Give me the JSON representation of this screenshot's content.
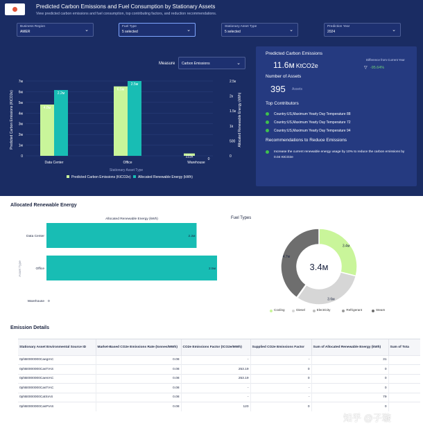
{
  "header": {
    "title": "Predicted Carbon Emissions and Fuel Consumption by Stationary Assets",
    "subtitle": "View predicted carbon emissions and fuel consumption, top contributing factors, and reduction recommendations."
  },
  "filters": [
    {
      "label": "Business Region",
      "value": "AMER"
    },
    {
      "label": "Fuel Type",
      "value": "5 selected"
    },
    {
      "label": "Stationary Asset Type",
      "value": "5 selected"
    },
    {
      "label": "Prediction Year",
      "value": "2024"
    }
  ],
  "measure": {
    "label": "Measure",
    "value": "Carbon Emissions"
  },
  "summary": {
    "title": "Predicted Carbon Emissions",
    "value": "11.6м",
    "unit": "KtCO2e",
    "diff_label": "Difference from Current Year",
    "diff_value": "-95.64%",
    "assets_label": "Number of Assets",
    "assets_value": "395",
    "assets_unit": "Assets",
    "top_label": "Top Contributors",
    "contributors": [
      "Country:US,Maximum Yearly Day Temperature 88",
      "Country:US,Maximum Yearly Day Temperature 72",
      "Country:US,Maximum Yearly Day Temperature 94"
    ],
    "rec_label": "Recommendations to Reduce Emissions",
    "recommendation": "Increase the current renewable energy usage by 10% to reduce the carbon emissions by 0.04 KtCO2e"
  },
  "chart_data": [
    {
      "type": "bar",
      "categories": [
        "Data Center",
        "Office",
        "Warehouse"
      ],
      "series": [
        {
          "name": "Predicted Carbon Emissions (KtCO2e)",
          "color": "#c9f59a",
          "values": [
            4.8,
            6.5,
            0.222
          ],
          "labels": [
            "4.8м",
            "6.5м",
            "222к"
          ]
        },
        {
          "name": "Allocated Renewable Energy (kWh)",
          "color": "#18bdb4",
          "values": [
            2200000,
            2500000,
            0
          ],
          "labels": [
            "2.2м",
            "2.5м",
            "0"
          ]
        }
      ],
      "xlabel": "Stationary Asset Type",
      "ylabel": "Predicted Carbon Emissions (KtCO2e)",
      "y2label": "Allocated Renewable Energy (kWh)",
      "yticks": [
        "0",
        "1м",
        "2м",
        "3м",
        "4м",
        "5м",
        "6м",
        "7м"
      ],
      "ylim": [
        0,
        7
      ],
      "y2ticks": [
        "0",
        "500",
        "1k",
        "1.5к",
        "2к",
        "2.5к"
      ],
      "y2lim": [
        0,
        2500000
      ],
      "legend": "bottom"
    },
    {
      "type": "bar",
      "orientation": "horizontal",
      "title": "Allocated Renewable Energy (kWh)",
      "categories": [
        "Data Center",
        "Office",
        "Warehouse"
      ],
      "values": [
        2200000,
        2500000,
        0
      ],
      "labels": [
        "2.2м",
        "2.5м",
        "0"
      ],
      "ylabel": "Asset Type",
      "color": "#18bdb4"
    },
    {
      "type": "pie",
      "title": "Fuel Types",
      "center_label": "3.4м",
      "slices": [
        {
          "name": "Cooling",
          "value": 3.4,
          "label": "3.4м",
          "color": "#c9f59a"
        },
        {
          "name": "Diesel",
          "value": 3.6,
          "label": "3.6м",
          "color": "#d6d6d6"
        },
        {
          "name": "Electricity",
          "value": 0.02,
          "label": "",
          "color": "#bdbdbd"
        },
        {
          "name": "Refrigerant",
          "value": 0.02,
          "label": "",
          "color": "#9a9a9a"
        },
        {
          "name": "Steam",
          "value": 4.7,
          "label": "4.7м",
          "color": "#6e6e6e"
        }
      ],
      "legend": "bottom"
    }
  ],
  "allocated": {
    "title": "Allocated Renewable Energy"
  },
  "table": {
    "title": "Emission Details",
    "columns": [
      "Stationary Asset Environmental Source ID",
      "Market-Based CO2e Emissions Rate (tonnes/MWh)",
      "CO2e Emissions Factor (tCO2e/MWh)",
      "Supplied CO2e Emissions Factor",
      "Sum of Allocated Renewable Energy (kWh)",
      "Sum of Tota"
    ],
    "rows": [
      [
        "0phB0000000CaegIAC",
        "0.08",
        "-",
        "-",
        "31",
        ""
      ],
      [
        "0phB0000000CasTIAS",
        "0.08",
        "253.19",
        "0",
        "0",
        ""
      ],
      [
        "0phB0000000CaenIAC",
        "0.08",
        "253.19",
        "0",
        "0",
        ""
      ],
      [
        "0phB0000000CasTIAC",
        "0.08",
        "-",
        "-",
        "0",
        ""
      ],
      [
        "0phB0000000CatSIAS",
        "0.08",
        "-",
        "-",
        "79",
        ""
      ],
      [
        "0phB0000000CasPIAS",
        "0.08",
        "120",
        "0",
        "0",
        ""
      ]
    ]
  },
  "watermark": "知乎 @子璇"
}
